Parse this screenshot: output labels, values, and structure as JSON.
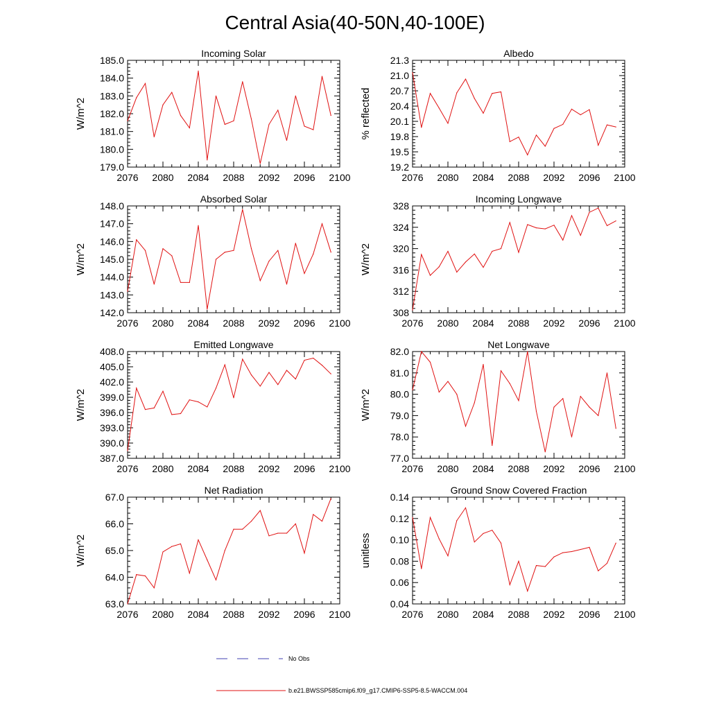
{
  "figure_title": "Central Asia(40-50N,40-100E)",
  "legend": {
    "obs_label": "No Obs",
    "model_label": "b.e21.BWSSP585cmip6.f09_g17.CMIP6-SSP5-8.5-WACCM.004",
    "obs_color": "#3f3fb0",
    "model_color": "#e01010"
  },
  "chart_data": [
    {
      "type": "line",
      "title": "Incoming Solar",
      "ylabel": "W/m^2",
      "xlabel": "",
      "xlim": [
        2076,
        2100
      ],
      "ylim": [
        179.0,
        185.0
      ],
      "x_ticks": [
        2076,
        2080,
        2084,
        2088,
        2092,
        2096,
        2100
      ],
      "y_ticks": [
        "179.0",
        "180.0",
        "181.0",
        "182.0",
        "183.0",
        "184.0",
        "185.0"
      ],
      "x": [
        2076,
        2077,
        2078,
        2079,
        2080,
        2081,
        2082,
        2083,
        2084,
        2085,
        2086,
        2087,
        2088,
        2089,
        2090,
        2091,
        2092,
        2093,
        2094,
        2095,
        2096,
        2097,
        2098,
        2099
      ],
      "values": [
        181.6,
        182.9,
        183.7,
        180.7,
        182.5,
        183.2,
        181.9,
        181.2,
        184.4,
        179.4,
        183.0,
        181.4,
        181.6,
        183.8,
        181.7,
        179.2,
        181.4,
        182.2,
        180.5,
        183.0,
        181.3,
        181.1,
        184.1,
        181.9
      ]
    },
    {
      "type": "line",
      "title": "Albedo",
      "ylabel": "% reflected",
      "xlabel": "",
      "xlim": [
        2076,
        2100
      ],
      "ylim": [
        19.2,
        21.3
      ],
      "x_ticks": [
        2076,
        2080,
        2084,
        2088,
        2092,
        2096,
        2100
      ],
      "y_ticks": [
        "19.2",
        "19.5",
        "19.8",
        "20.1",
        "20.4",
        "20.7",
        "21.0",
        "21.3"
      ],
      "x": [
        2076,
        2077,
        2078,
        2079,
        2080,
        2081,
        2082,
        2083,
        2084,
        2085,
        2086,
        2087,
        2088,
        2089,
        2090,
        2091,
        2092,
        2093,
        2094,
        2095,
        2096,
        2097,
        2098,
        2099
      ],
      "values": [
        21.06,
        19.98,
        20.65,
        20.36,
        20.06,
        20.66,
        20.93,
        20.55,
        20.26,
        20.65,
        20.68,
        19.7,
        19.79,
        19.44,
        19.83,
        19.61,
        19.96,
        20.04,
        20.34,
        20.23,
        20.33,
        19.63,
        20.03,
        19.99
      ]
    },
    {
      "type": "line",
      "title": "Absorbed Solar",
      "ylabel": "W/m^2",
      "xlabel": "",
      "xlim": [
        2076,
        2100
      ],
      "ylim": [
        142.0,
        148.0
      ],
      "x_ticks": [
        2076,
        2080,
        2084,
        2088,
        2092,
        2096,
        2100
      ],
      "y_ticks": [
        "142.0",
        "143.0",
        "144.0",
        "145.0",
        "146.0",
        "147.0",
        "148.0"
      ],
      "x": [
        2076,
        2077,
        2078,
        2079,
        2080,
        2081,
        2082,
        2083,
        2084,
        2085,
        2086,
        2087,
        2088,
        2089,
        2090,
        2091,
        2092,
        2093,
        2094,
        2095,
        2096,
        2097,
        2098,
        2099
      ],
      "values": [
        143.2,
        146.1,
        145.5,
        143.6,
        145.6,
        145.2,
        143.7,
        143.7,
        146.9,
        142.2,
        145.0,
        145.4,
        145.5,
        147.8,
        145.6,
        143.8,
        144.9,
        145.5,
        143.6,
        145.9,
        144.2,
        145.3,
        147.0,
        145.4
      ]
    },
    {
      "type": "line",
      "title": "Incoming Longwave",
      "ylabel": "W/m^2",
      "xlabel": "",
      "xlim": [
        2076,
        2100
      ],
      "ylim": [
        308,
        328
      ],
      "x_ticks": [
        2076,
        2080,
        2084,
        2088,
        2092,
        2096,
        2100
      ],
      "y_ticks": [
        "308",
        "312",
        "316",
        "320",
        "324",
        "328"
      ],
      "x": [
        2076,
        2077,
        2078,
        2079,
        2080,
        2081,
        2082,
        2083,
        2084,
        2085,
        2086,
        2087,
        2088,
        2089,
        2090,
        2091,
        2092,
        2093,
        2094,
        2095,
        2096,
        2097,
        2098,
        2099
      ],
      "values": [
        308.5,
        318.9,
        315.0,
        316.6,
        319.5,
        315.6,
        317.5,
        319.0,
        316.5,
        319.5,
        320.0,
        324.9,
        319.3,
        324.5,
        323.9,
        323.7,
        324.4,
        321.6,
        326.2,
        322.5,
        326.8,
        327.6,
        324.3,
        325.2
      ]
    },
    {
      "type": "line",
      "title": "Emitted Longwave",
      "ylabel": "W/m^2",
      "xlabel": "",
      "xlim": [
        2076,
        2100
      ],
      "ylim": [
        387.0,
        408.0
      ],
      "x_ticks": [
        2076,
        2080,
        2084,
        2088,
        2092,
        2096,
        2100
      ],
      "y_ticks": [
        "387.0",
        "390.0",
        "393.0",
        "396.0",
        "399.0",
        "402.0",
        "405.0",
        "408.0"
      ],
      "x": [
        2076,
        2077,
        2078,
        2079,
        2080,
        2081,
        2082,
        2083,
        2084,
        2085,
        2086,
        2087,
        2088,
        2089,
        2090,
        2091,
        2092,
        2093,
        2094,
        2095,
        2096,
        2097,
        2098,
        2099
      ],
      "values": [
        388.5,
        400.8,
        396.6,
        396.9,
        400.2,
        395.6,
        395.8,
        398.5,
        398.1,
        397.1,
        400.8,
        405.4,
        398.9,
        406.5,
        403.4,
        401.2,
        403.9,
        401.5,
        404.3,
        402.6,
        406.3,
        406.7,
        405.3,
        403.6
      ]
    },
    {
      "type": "line",
      "title": "Net Longwave",
      "ylabel": "W/m^2",
      "xlabel": "",
      "xlim": [
        2076,
        2100
      ],
      "ylim": [
        77.0,
        82.0
      ],
      "x_ticks": [
        2076,
        2080,
        2084,
        2088,
        2092,
        2096,
        2100
      ],
      "y_ticks": [
        "77.0",
        "78.0",
        "79.0",
        "80.0",
        "81.0",
        "82.0"
      ],
      "x": [
        2076,
        2077,
        2078,
        2079,
        2080,
        2081,
        2082,
        2083,
        2084,
        2085,
        2086,
        2087,
        2088,
        2089,
        2090,
        2091,
        2092,
        2093,
        2094,
        2095,
        2096,
        2097,
        2098,
        2099
      ],
      "values": [
        80.2,
        82.0,
        81.5,
        80.1,
        80.6,
        80.0,
        78.5,
        79.6,
        81.4,
        77.6,
        81.1,
        80.5,
        79.7,
        82.0,
        79.2,
        77.3,
        79.4,
        79.8,
        78.0,
        79.9,
        79.4,
        79.0,
        81.0,
        78.4
      ]
    },
    {
      "type": "line",
      "title": "Net Radiation",
      "ylabel": "W/m^2",
      "xlabel": "",
      "xlim": [
        2076,
        2100
      ],
      "ylim": [
        63.0,
        67.0
      ],
      "x_ticks": [
        2076,
        2080,
        2084,
        2088,
        2092,
        2096,
        2100
      ],
      "y_ticks": [
        "63.0",
        "64.0",
        "65.0",
        "66.0",
        "67.0"
      ],
      "x": [
        2076,
        2077,
        2078,
        2079,
        2080,
        2081,
        2082,
        2083,
        2084,
        2085,
        2086,
        2087,
        2088,
        2089,
        2090,
        2091,
        2092,
        2093,
        2094,
        2095,
        2096,
        2097,
        2098,
        2099
      ],
      "values": [
        63.0,
        64.1,
        64.05,
        63.6,
        64.95,
        65.15,
        65.25,
        64.15,
        65.4,
        64.65,
        63.9,
        65.0,
        65.8,
        65.8,
        66.1,
        66.5,
        65.55,
        65.65,
        65.65,
        66.0,
        64.9,
        66.35,
        66.1,
        66.95
      ]
    },
    {
      "type": "line",
      "title": "Ground Snow Covered Fraction",
      "ylabel": "unitless",
      "xlabel": "",
      "xlim": [
        2076,
        2100
      ],
      "ylim": [
        0.04,
        0.14
      ],
      "x_ticks": [
        2076,
        2080,
        2084,
        2088,
        2092,
        2096,
        2100
      ],
      "y_ticks": [
        "0.04",
        "0.06",
        "0.08",
        "0.10",
        "0.12",
        "0.14"
      ],
      "x": [
        2076,
        2077,
        2078,
        2079,
        2080,
        2081,
        2082,
        2083,
        2084,
        2085,
        2086,
        2087,
        2088,
        2089,
        2090,
        2091,
        2092,
        2093,
        2094,
        2095,
        2096,
        2097,
        2098,
        2099
      ],
      "values": [
        0.121,
        0.073,
        0.121,
        0.101,
        0.085,
        0.118,
        0.13,
        0.098,
        0.106,
        0.109,
        0.097,
        0.058,
        0.08,
        0.052,
        0.076,
        0.075,
        0.084,
        0.088,
        0.089,
        0.091,
        0.093,
        0.071,
        0.078,
        0.097
      ]
    }
  ]
}
